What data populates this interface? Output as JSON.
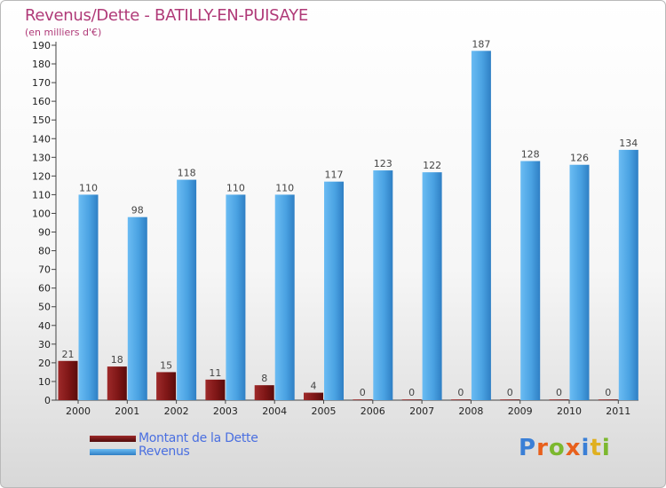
{
  "title": "Revenus/Dette - BATILLY-EN-PUISAYE",
  "subtitle": "(en milliers d'€)",
  "brand": "Proxiti",
  "chart_data": {
    "type": "bar",
    "categories": [
      "2000",
      "2001",
      "2002",
      "2003",
      "2004",
      "2005",
      "2006",
      "2007",
      "2008",
      "2009",
      "2010",
      "2011"
    ],
    "series": [
      {
        "name": "Montant de la Dette",
        "color": "#8b1a1a",
        "values": [
          21,
          18,
          15,
          11,
          8,
          4,
          0,
          0,
          0,
          0,
          0,
          0
        ]
      },
      {
        "name": "Revenus",
        "color": "#4ba3e3",
        "values": [
          110,
          98,
          118,
          110,
          110,
          117,
          123,
          122,
          187,
          128,
          126,
          134
        ]
      }
    ],
    "yticks": [
      0,
      10,
      20,
      30,
      40,
      50,
      60,
      70,
      80,
      90,
      100,
      110,
      120,
      130,
      140,
      150,
      160,
      170,
      180,
      190
    ],
    "ylim": [
      0,
      190
    ],
    "grid": false,
    "legend_position": "bottom-left"
  }
}
